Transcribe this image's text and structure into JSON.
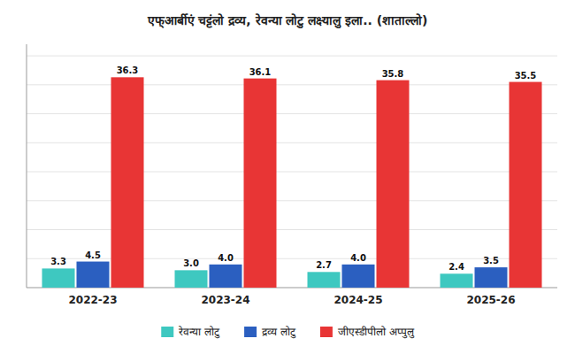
{
  "chart_data": {
    "type": "bar",
    "title": "एफ्आर्बीएं चट्टंलो द्रव्य, रेवन्या लोटु लक्ष्यालु इला.. (शाताल्लो)",
    "categories": [
      "2022-23",
      "2023-24",
      "2024-25",
      "2025-26"
    ],
    "series": [
      {
        "name": "रेवन्या लोटु",
        "color": "#3EC8C0",
        "values": [
          3.3,
          3.0,
          2.7,
          2.4
        ],
        "value_labels": [
          "3.3",
          "3.0",
          "2.7",
          "2.4"
        ]
      },
      {
        "name": "द्रव्य लोटु",
        "color": "#2B5FC0",
        "values": [
          4.5,
          4.0,
          4.0,
          3.5
        ],
        "value_labels": [
          "4.5",
          "4.0",
          "4.0",
          "3.5"
        ]
      },
      {
        "name": "जीएस्डीपीलो अप्पुलु",
        "color": "#E83535",
        "values": [
          36.3,
          36.1,
          35.8,
          35.5
        ]
      }
    ],
    "ylim": [
      0,
      42
    ],
    "yticks": [
      5,
      10,
      15,
      20,
      25,
      30,
      35,
      40
    ],
    "grid": true,
    "tick_labels": "x",
    "data_labels": true,
    "legend": "bottom"
  }
}
